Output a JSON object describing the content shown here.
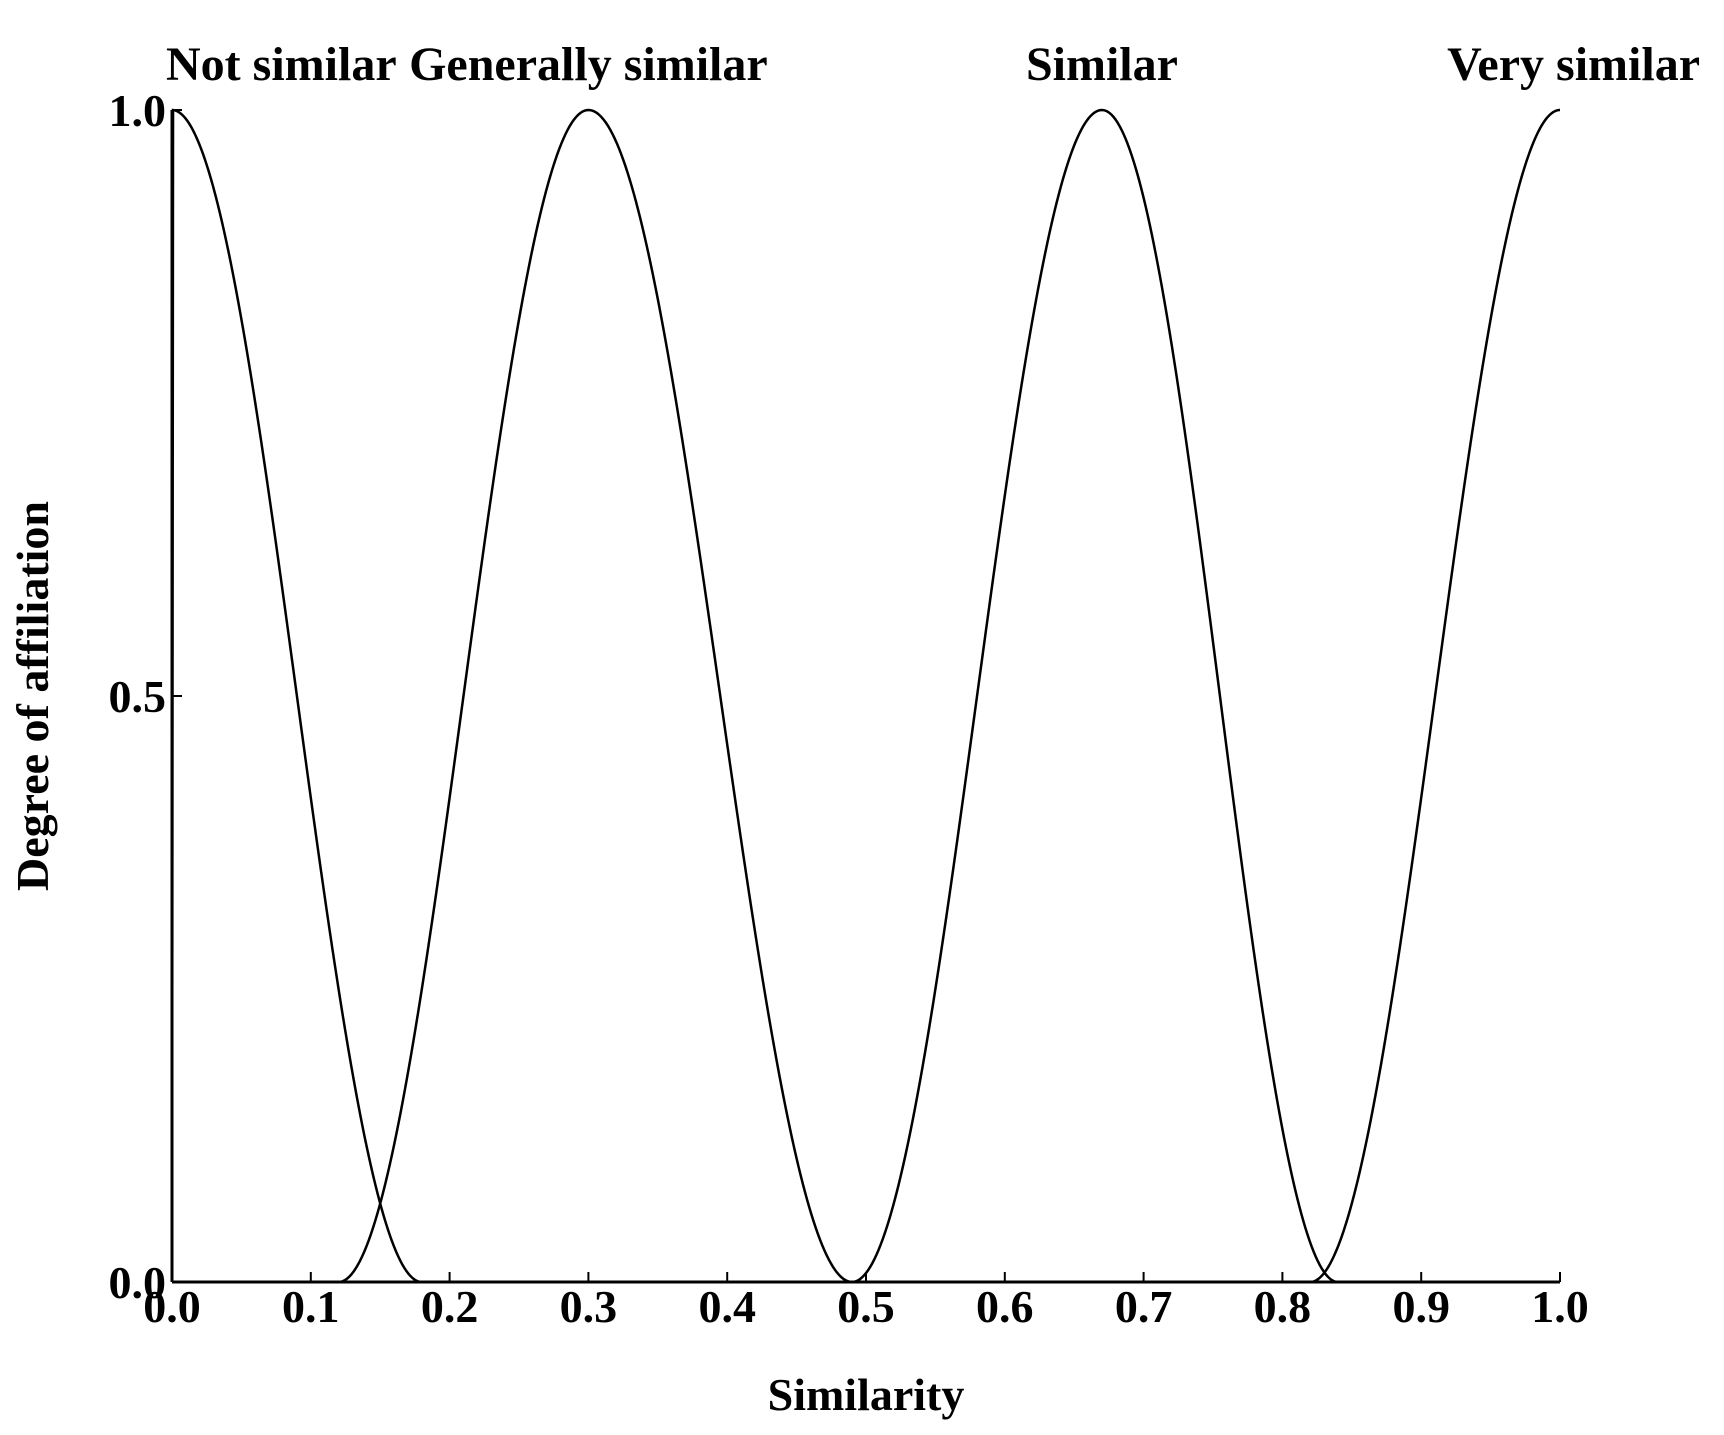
{
  "chart_data": {
    "type": "line",
    "xlabel": "Similarity",
    "ylabel": "Degree of affiliation",
    "xlim": [
      0.0,
      1.0
    ],
    "ylim": [
      0.0,
      1.0
    ],
    "x_ticks": [
      "0.0",
      "0.1",
      "0.2",
      "0.3",
      "0.4",
      "0.5",
      "0.6",
      "0.7",
      "0.8",
      "0.9",
      "1.0"
    ],
    "y_ticks": [
      "0.0",
      "0.5",
      "1.0"
    ],
    "grid": false,
    "line_color": "#000000",
    "series": [
      {
        "name": "Not similar",
        "peak_x": 0.0,
        "peak_y": 1.0,
        "zero_x": [
          0.18,
          0.18
        ]
      },
      {
        "name": "Generally similar",
        "peak_x": 0.3,
        "peak_y": 1.0,
        "zero_x": [
          0.12,
          0.49
        ]
      },
      {
        "name": "Similar",
        "peak_x": 0.67,
        "peak_y": 1.0,
        "zero_x": [
          0.49,
          0.84
        ]
      },
      {
        "name": "Very similar",
        "peak_x": 1.0,
        "peak_y": 1.0,
        "zero_x": [
          0.82,
          0.82
        ]
      }
    ]
  }
}
